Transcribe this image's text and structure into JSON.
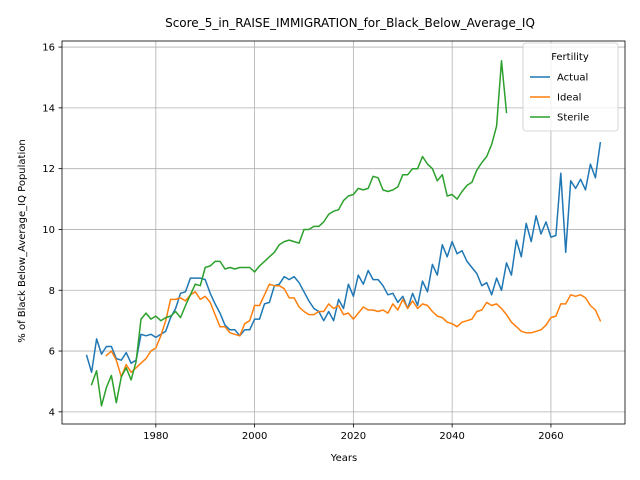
{
  "chart_data": {
    "type": "line",
    "title": "Score_5_in_RAISE_IMMIGRATION_for_Black_Below_Average_IQ",
    "xlabel": "Years",
    "ylabel": "% of Black Below_Average_IQ Population",
    "xlim": [
      1961,
      2075
    ],
    "ylim": [
      3.6,
      16.2
    ],
    "xticks": [
      1980,
      2000,
      2020,
      2040,
      2060
    ],
    "yticks": [
      4,
      6,
      8,
      10,
      12,
      14,
      16
    ],
    "grid": true,
    "legend": {
      "title": "Fertility",
      "placement": "top-right"
    },
    "series": [
      {
        "name": "Actual",
        "color": "#1f77b4",
        "x": [
          1966,
          1967,
          1968,
          1969,
          1970,
          1971,
          1972,
          1973,
          1974,
          1975,
          1976,
          1977,
          1978,
          1979,
          1980,
          1981,
          1982,
          1983,
          1984,
          1985,
          1986,
          1987,
          1988,
          1989,
          1990,
          1991,
          1992,
          1993,
          1994,
          1995,
          1996,
          1997,
          1998,
          1999,
          2000,
          2001,
          2002,
          2003,
          2004,
          2005,
          2006,
          2007,
          2008,
          2009,
          2010,
          2011,
          2012,
          2013,
          2014,
          2015,
          2016,
          2017,
          2018,
          2019,
          2020,
          2021,
          2022,
          2023,
          2024,
          2025,
          2026,
          2027,
          2028,
          2029,
          2030,
          2031,
          2032,
          2033,
          2034,
          2035,
          2036,
          2037,
          2038,
          2039,
          2040,
          2041,
          2042,
          2043,
          2044,
          2045,
          2046,
          2047,
          2048,
          2049,
          2050,
          2051,
          2052,
          2053,
          2054,
          2055,
          2056,
          2057,
          2058,
          2059,
          2060,
          2061,
          2062,
          2063,
          2064,
          2065,
          2066,
          2067,
          2068,
          2069,
          2070
        ],
        "values": [
          5.85,
          5.3,
          6.4,
          5.9,
          6.15,
          6.15,
          5.75,
          5.7,
          5.95,
          5.6,
          5.7,
          6.55,
          6.5,
          6.55,
          6.45,
          6.55,
          6.65,
          7.1,
          7.4,
          7.9,
          7.95,
          8.4,
          8.4,
          8.4,
          8.35,
          7.9,
          7.55,
          7.25,
          6.85,
          6.7,
          6.7,
          6.5,
          6.7,
          6.7,
          7.05,
          7.05,
          7.55,
          7.6,
          8.15,
          8.2,
          8.45,
          8.35,
          8.45,
          8.25,
          7.95,
          7.65,
          7.4,
          7.3,
          7.0,
          7.3,
          7.0,
          7.7,
          7.4,
          8.2,
          7.8,
          8.5,
          8.2,
          8.65,
          8.35,
          8.35,
          8.15,
          7.85,
          7.9,
          7.6,
          7.8,
          7.4,
          7.9,
          7.5,
          8.3,
          7.95,
          8.85,
          8.5,
          9.5,
          9.1,
          9.6,
          9.2,
          9.3,
          8.95,
          8.75,
          8.55,
          8.15,
          8.25,
          7.85,
          8.4,
          8.0,
          8.9,
          8.5,
          9.65,
          9.1,
          10.2,
          9.6,
          10.45,
          9.85,
          10.25,
          9.75,
          9.8,
          11.85,
          9.25,
          11.6,
          11.35,
          11.65,
          11.3,
          12.15,
          11.7,
          12.85
        ]
      },
      {
        "name": "Ideal",
        "color": "#ff7f0e",
        "x": [
          1970,
          1971,
          1972,
          1973,
          1974,
          1975,
          1976,
          1977,
          1978,
          1979,
          1980,
          1981,
          1982,
          1983,
          1984,
          1985,
          1986,
          1987,
          1988,
          1989,
          1990,
          1991,
          1992,
          1993,
          1994,
          1995,
          1996,
          1997,
          1998,
          1999,
          2000,
          2001,
          2002,
          2003,
          2004,
          2005,
          2006,
          2007,
          2008,
          2009,
          2010,
          2011,
          2012,
          2013,
          2014,
          2015,
          2016,
          2017,
          2018,
          2019,
          2020,
          2021,
          2022,
          2023,
          2024,
          2025,
          2026,
          2027,
          2028,
          2029,
          2030,
          2031,
          2032,
          2033,
          2034,
          2035,
          2036,
          2037,
          2038,
          2039,
          2040,
          2041,
          2042,
          2043,
          2044,
          2045,
          2046,
          2047,
          2048,
          2049,
          2050,
          2051,
          2052,
          2053,
          2054,
          2055,
          2056,
          2057,
          2058,
          2059,
          2060,
          2061,
          2062,
          2063,
          2064,
          2065,
          2066,
          2067,
          2068,
          2069,
          2070
        ],
        "values": [
          5.85,
          6.0,
          5.7,
          5.15,
          5.55,
          5.3,
          5.45,
          5.6,
          5.75,
          6.0,
          6.1,
          6.5,
          7.0,
          7.7,
          7.7,
          7.75,
          7.65,
          7.85,
          7.95,
          7.7,
          7.8,
          7.6,
          7.2,
          6.8,
          6.8,
          6.6,
          6.55,
          6.5,
          6.9,
          7.0,
          7.5,
          7.5,
          7.85,
          8.2,
          8.15,
          8.15,
          8.05,
          7.75,
          7.75,
          7.45,
          7.3,
          7.2,
          7.2,
          7.3,
          7.3,
          7.55,
          7.4,
          7.5,
          7.2,
          7.25,
          7.05,
          7.25,
          7.45,
          7.35,
          7.35,
          7.3,
          7.35,
          7.25,
          7.55,
          7.35,
          7.7,
          7.4,
          7.65,
          7.4,
          7.55,
          7.5,
          7.3,
          7.15,
          7.1,
          6.95,
          6.9,
          6.8,
          6.95,
          7.0,
          7.05,
          7.3,
          7.35,
          7.6,
          7.5,
          7.55,
          7.4,
          7.2,
          6.95,
          6.8,
          6.65,
          6.6,
          6.6,
          6.65,
          6.7,
          6.85,
          7.1,
          7.15,
          7.55,
          7.55,
          7.85,
          7.8,
          7.85,
          7.75,
          7.5,
          7.35,
          7.0
        ]
      },
      {
        "name": "Sterile",
        "color": "#2ca02c",
        "x": [
          1967,
          1968,
          1969,
          1970,
          1971,
          1972,
          1973,
          1974,
          1975,
          1976,
          1977,
          1978,
          1979,
          1980,
          1981,
          1982,
          1983,
          1984,
          1985,
          1986,
          1987,
          1988,
          1989,
          1990,
          1991,
          1992,
          1993,
          1994,
          1995,
          1996,
          1997,
          1998,
          1999,
          2000,
          2001,
          2002,
          2003,
          2004,
          2005,
          2006,
          2007,
          2008,
          2009,
          2010,
          2011,
          2012,
          2013,
          2014,
          2015,
          2016,
          2017,
          2018,
          2019,
          2020,
          2021,
          2022,
          2023,
          2024,
          2025,
          2026,
          2027,
          2028,
          2029,
          2030,
          2031,
          2032,
          2033,
          2034,
          2035,
          2036,
          2037,
          2038,
          2039,
          2040,
          2041,
          2042,
          2043,
          2044,
          2045,
          2046,
          2047,
          2048,
          2049,
          2050,
          2051
        ],
        "values": [
          4.9,
          5.35,
          4.2,
          4.8,
          5.2,
          4.3,
          5.15,
          5.45,
          5.05,
          5.65,
          7.05,
          7.25,
          7.05,
          7.15,
          7.0,
          7.1,
          7.15,
          7.3,
          7.1,
          7.5,
          7.85,
          8.2,
          8.15,
          8.75,
          8.8,
          8.95,
          8.95,
          8.7,
          8.75,
          8.7,
          8.75,
          8.75,
          8.75,
          8.6,
          8.8,
          8.95,
          9.1,
          9.25,
          9.5,
          9.6,
          9.65,
          9.6,
          9.55,
          10.0,
          10.0,
          10.1,
          10.1,
          10.25,
          10.5,
          10.6,
          10.65,
          10.95,
          11.1,
          11.15,
          11.35,
          11.3,
          11.35,
          11.75,
          11.7,
          11.3,
          11.25,
          11.3,
          11.4,
          11.8,
          11.8,
          12.0,
          12.0,
          12.4,
          12.15,
          12.0,
          11.6,
          11.8,
          11.1,
          11.15,
          11.0,
          11.25,
          11.45,
          11.55,
          11.95,
          12.2,
          12.4,
          12.8,
          13.4,
          15.55,
          13.85
        ]
      }
    ]
  }
}
